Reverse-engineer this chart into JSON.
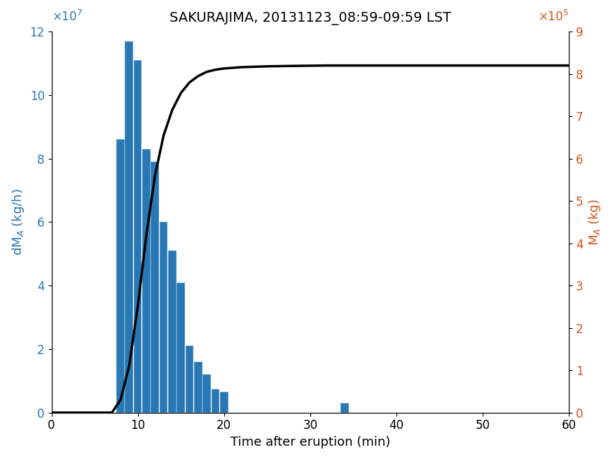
{
  "title": "SAKURAJIMA, 20131123_08:59-09:59 LST",
  "xlabel": "Time after eruption (min)",
  "ylabel_left": "dM$_A$ (kg/h)",
  "ylabel_right": "M$_A$ (kg)",
  "bar_centers": [
    8,
    9,
    10,
    11,
    12,
    13,
    14,
    15,
    16,
    17,
    18,
    19,
    20,
    21,
    22,
    23,
    24,
    25,
    26,
    27,
    28,
    29,
    30,
    31,
    32,
    33,
    34
  ],
  "bar_heights": [
    86000000.0,
    117000000.0,
    111000000.0,
    83000000.0,
    79000000.0,
    60000000.0,
    51000000.0,
    41000000.0,
    21000000.0,
    16000000.0,
    12000000.0,
    7500000.0,
    6500000.0,
    0.0,
    0.0,
    0.0,
    0.0,
    0.0,
    0.0,
    0.0,
    0.0,
    0.0,
    0.0,
    0.0,
    0.0,
    0.0,
    3000000.0
  ],
  "bar_width": 0.95,
  "bar_color": "#2878b5",
  "xlim": [
    0,
    60
  ],
  "ylim_left": [
    0,
    120000000.0
  ],
  "ylim_right": [
    0,
    900000.0
  ],
  "line_color": "black",
  "line_width": 2.5,
  "cumulative_x": [
    0,
    7,
    8,
    9,
    10,
    11,
    12,
    13,
    14,
    15,
    16,
    17,
    18,
    19,
    20,
    22,
    25,
    28,
    32,
    36,
    40,
    45,
    50,
    55,
    60
  ],
  "cumulative_y": [
    0,
    0,
    30000.0,
    110000.0,
    250000.0,
    420000.0,
    560000.0,
    655000.0,
    715000.0,
    755000.0,
    780000.0,
    795000.0,
    805000.0,
    810000.0,
    813000.0,
    816000.0,
    818000.0,
    819000.0,
    820000.0,
    820000.0,
    820000.0,
    820000.0,
    820000.0,
    820000.0,
    820000.0
  ],
  "left_tick_color": "#2878b5",
  "right_tick_color": "#d95319",
  "xticks": [
    0,
    10,
    20,
    30,
    40,
    50,
    60
  ],
  "left_yticks": [
    0,
    20000000.0,
    40000000.0,
    60000000.0,
    80000000.0,
    100000000.0,
    120000000.0
  ],
  "right_yticks": [
    0,
    100000.0,
    200000.0,
    300000.0,
    400000.0,
    500000.0,
    600000.0,
    700000.0,
    800000.0,
    900000.0
  ],
  "title_fontsize": 14,
  "label_fontsize": 13,
  "tick_fontsize": 12,
  "exponent_fontsize": 12
}
